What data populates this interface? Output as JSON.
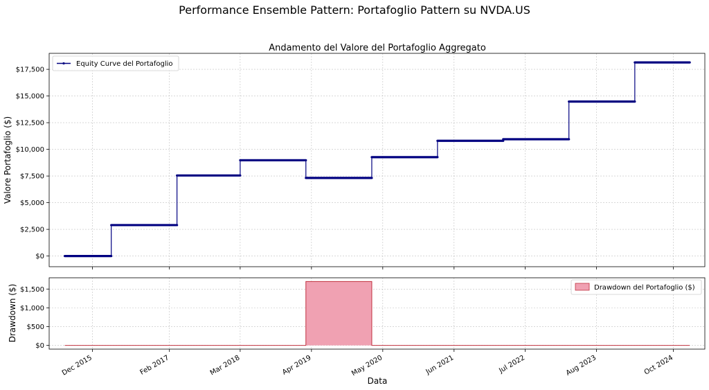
{
  "figure": {
    "title": "Performance Ensemble Pattern: Portafoglio Pattern su NVDA.US"
  },
  "chart_data": [
    {
      "type": "line",
      "title": "Andamento del Valore del Portafoglio Aggregato",
      "ylabel": "Valore Portafoglio ($)",
      "xlabel": "",
      "ylim": [
        -1000,
        19000
      ],
      "yticks": [
        0,
        2500,
        5000,
        7500,
        10000,
        12500,
        15000,
        17500
      ],
      "ytick_labels": [
        "$0",
        "$2,500",
        "$5,000",
        "$7,500",
        "$10,000",
        "$12,500",
        "$15,000",
        "$17,500"
      ],
      "grid": true,
      "legend_position": "top-left",
      "series": [
        {
          "name": "Equity Curve del Portafoglio",
          "color": "#000080",
          "style": "step",
          "points": [
            [
              "2015-07-01",
              0
            ],
            [
              "2016-03-15",
              0
            ],
            [
              "2016-03-15",
              2900
            ],
            [
              "2017-03-15",
              2900
            ],
            [
              "2017-03-15",
              7550
            ],
            [
              "2018-03-01",
              7550
            ],
            [
              "2018-03-01",
              8980
            ],
            [
              "2019-03-01",
              8980
            ],
            [
              "2019-03-01",
              7320
            ],
            [
              "2020-03-01",
              7320
            ],
            [
              "2020-03-01",
              9270
            ],
            [
              "2021-03-01",
              9270
            ],
            [
              "2021-03-01",
              10800
            ],
            [
              "2022-03-01",
              10800
            ],
            [
              "2022-03-01",
              10950
            ],
            [
              "2023-03-01",
              10950
            ],
            [
              "2023-03-01",
              14480
            ],
            [
              "2024-03-01",
              14480
            ],
            [
              "2024-03-01",
              18150
            ],
            [
              "2024-12-31",
              18150
            ]
          ]
        }
      ]
    },
    {
      "type": "area",
      "xlabel": "Data",
      "ylabel": "Drawdown ($)",
      "ylim": [
        -100,
        1800
      ],
      "yticks": [
        0,
        500,
        1000,
        1500
      ],
      "ytick_labels": [
        "$0",
        "$500",
        "$1,000",
        "$1,500"
      ],
      "x_ticks": [
        "2015-12-01",
        "2017-02-01",
        "2018-03-01",
        "2019-04-01",
        "2020-05-01",
        "2021-06-01",
        "2022-07-01",
        "2023-08-01",
        "2024-10-01"
      ],
      "x_tick_labels": [
        "Dec 2015",
        "Feb 2017",
        "Mar 2018",
        "Apr 2019",
        "May 2020",
        "Jun 2021",
        "Jul 2022",
        "Aug 2023",
        "Oct 2024"
      ],
      "grid": true,
      "legend_position": "top-right",
      "series": [
        {
          "name": "Drawdown del Portafoglio ($)",
          "fill_color": "#f0a1b2",
          "line_color": "#c0303e",
          "points": [
            [
              "2015-07-01",
              0
            ],
            [
              "2019-03-01",
              0
            ],
            [
              "2019-03-01",
              1700
            ],
            [
              "2020-03-01",
              1700
            ],
            [
              "2020-03-01",
              0
            ],
            [
              "2024-12-31",
              0
            ]
          ]
        }
      ]
    }
  ]
}
